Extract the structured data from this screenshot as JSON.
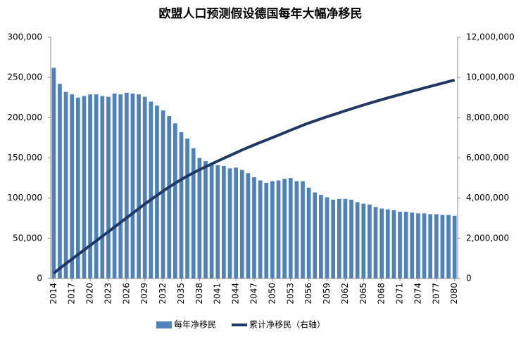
{
  "chart_data": {
    "type": "bar_line",
    "title": "欧盟人口预测假设德国每年大幅净移民",
    "categories": [
      "2014",
      null,
      null,
      "2017",
      null,
      null,
      "2020",
      null,
      null,
      "2023",
      null,
      null,
      "2026",
      null,
      null,
      "2029",
      null,
      null,
      "2032",
      null,
      null,
      "2035",
      null,
      null,
      "2038",
      null,
      null,
      "2041",
      null,
      null,
      "2044",
      null,
      null,
      "2047",
      null,
      null,
      "2050",
      null,
      null,
      "2053",
      null,
      null,
      "2056",
      null,
      null,
      "2059",
      null,
      null,
      "2062",
      null,
      null,
      "2065",
      null,
      null,
      "2068",
      null,
      null,
      "2071",
      null,
      null,
      "2074",
      null,
      null,
      "2077",
      null,
      null,
      "2080"
    ],
    "series": [
      {
        "name": "每年净移民",
        "color": "#4f81bd",
        "type": "bar",
        "values": [
          262000,
          242000,
          232000,
          229000,
          225000,
          227000,
          229000,
          229000,
          227000,
          226000,
          230000,
          229000,
          231000,
          230000,
          229000,
          226000,
          220000,
          215000,
          209000,
          202000,
          193000,
          182000,
          174000,
          162000,
          150000,
          146000,
          143000,
          141000,
          140000,
          137000,
          138000,
          135000,
          131000,
          126000,
          122000,
          119000,
          121000,
          122000,
          124000,
          125000,
          121000,
          121000,
          113000,
          107000,
          104000,
          101000,
          98000,
          99000,
          99000,
          98000,
          95000,
          93000,
          92000,
          89000,
          87000,
          86000,
          85000,
          83000,
          83000,
          82000,
          81000,
          81000,
          80000,
          80000,
          79000,
          79000,
          78000
        ]
      },
      {
        "name": "累计净移民（右轴）",
        "color": "#1f3864",
        "type": "line",
        "axis": "y2",
        "values": [
          262000,
          504000,
          736000,
          965000,
          1190000,
          1417000,
          1646000,
          1875000,
          2102000,
          2328000,
          2558000,
          2787000,
          3018000,
          3248000,
          3477000,
          3703000,
          3923000,
          4138000,
          4347000,
          4549000,
          4742000,
          4924000,
          5098000,
          5260000,
          5410000,
          5556000,
          5699000,
          5840000,
          5980000,
          6117000,
          6255000,
          6390000,
          6521000,
          6647000,
          6769000,
          6888000,
          7009000,
          7131000,
          7255000,
          7380000,
          7501000,
          7622000,
          7735000,
          7842000,
          7946000,
          8047000,
          8145000,
          8244000,
          8343000,
          8441000,
          8536000,
          8629000,
          8721000,
          8810000,
          8897000,
          8983000,
          9068000,
          9151000,
          9234000,
          9316000,
          9397000,
          9478000,
          9558000,
          9638000,
          9717000,
          9796000,
          9874000
        ]
      }
    ],
    "ylim": [
      0,
      300000
    ],
    "yticks": [
      0,
      {
        "value": 50000,
        "label": "50,000"
      },
      {
        "value": 100000,
        "label": "100,000"
      },
      {
        "value": 150000,
        "label": "150,000"
      },
      {
        "value": 200000,
        "label": "200,000"
      },
      {
        "value": 250000,
        "label": "250,000"
      },
      {
        "value": 300000,
        "label": "300,000"
      }
    ],
    "y2lim": [
      0,
      12000000
    ],
    "y2ticks": [
      0,
      {
        "value": 2000000,
        "label": "2,000,000"
      },
      {
        "value": 4000000,
        "label": "4,000,000"
      },
      {
        "value": 6000000,
        "label": "6,000,000"
      },
      {
        "value": 8000000,
        "label": "8,000,000"
      },
      {
        "value": 10000000,
        "label": "10,000,000"
      },
      {
        "value": 12000000,
        "label": "12,000,000"
      }
    ],
    "legend": "bottom",
    "grid": false
  }
}
